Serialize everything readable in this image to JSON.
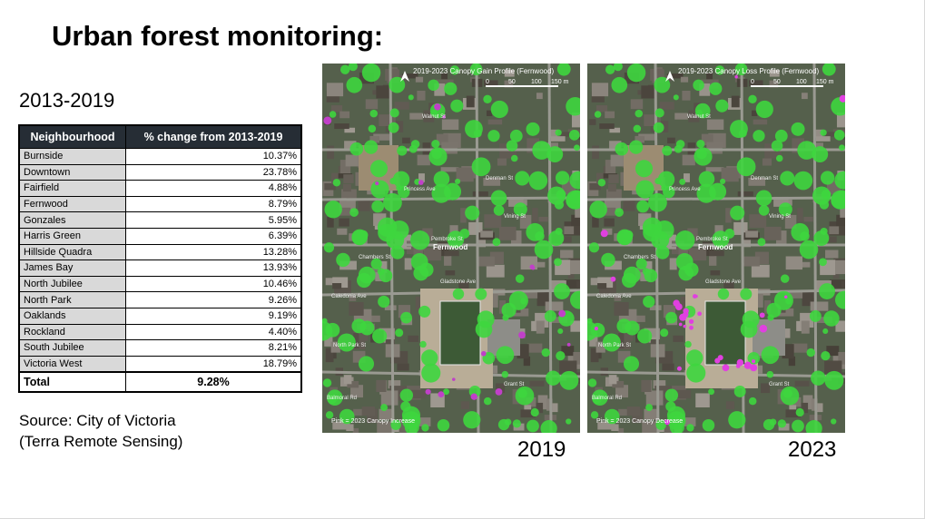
{
  "title": "Urban forest monitoring:",
  "period": "2013-2019",
  "table": {
    "headers": [
      "Neighbourhood",
      "% change from 2013-2019"
    ],
    "rows": [
      {
        "name": "Burnside",
        "value": "10.37%"
      },
      {
        "name": "Downtown",
        "value": "23.78%"
      },
      {
        "name": "Fairfield",
        "value": "4.88%"
      },
      {
        "name": "Fernwood",
        "value": "8.79%"
      },
      {
        "name": "Gonzales",
        "value": "5.95%"
      },
      {
        "name": "Harris Green",
        "value": "6.39%"
      },
      {
        "name": "Hillside Quadra",
        "value": "13.28%"
      },
      {
        "name": "James Bay",
        "value": "13.93%"
      },
      {
        "name": "North Jubilee",
        "value": "10.46%"
      },
      {
        "name": "North Park",
        "value": "9.26%"
      },
      {
        "name": "Oaklands",
        "value": "9.19%"
      },
      {
        "name": "Rockland",
        "value": "4.40%"
      },
      {
        "name": "South Jubilee",
        "value": "8.21%"
      },
      {
        "name": "Victoria West",
        "value": "18.79%"
      }
    ],
    "total": {
      "name": "Total",
      "value": "9.28%"
    }
  },
  "source": {
    "line1": "Source: City of Victoria",
    "line2": "(Terra Remote Sensing)"
  },
  "maps": {
    "left": {
      "heading": "2019-2023 Canopy Gain Profile (Fernwood)",
      "legend": "Pink = 2023 Canopy Increase",
      "year": "2019",
      "highlight_color": "#c040c8"
    },
    "right": {
      "heading": "2019-2023 Canopy Loss Profile (Fernwood)",
      "legend": "Pink = 2023 Canopy Decrease",
      "year": "2023",
      "highlight_color": "#e040e0"
    },
    "neighbourhood_label": "Fernwood",
    "streets": [
      "Walnut St",
      "Pembroke St",
      "Gladstone Ave",
      "Caledonia Ave",
      "North Park St",
      "Grant St",
      "Balmoral Rd",
      "Princess Ave",
      "Denman St",
      "Vining St",
      "Chambers St"
    ],
    "scale_labels": [
      "0",
      "50",
      "100",
      "150 m"
    ],
    "canopy_color": "#3ed63e"
  }
}
